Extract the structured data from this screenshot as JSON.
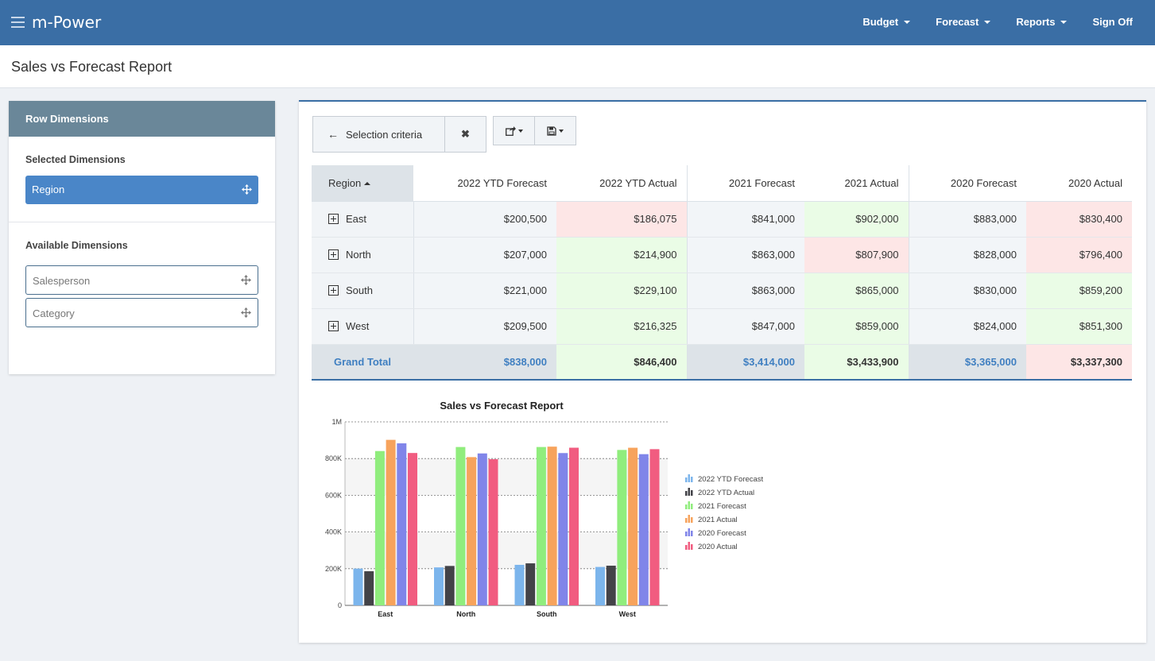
{
  "app": {
    "brand": "m-Power"
  },
  "nav": {
    "items": [
      {
        "label": "Budget",
        "dropdown": true
      },
      {
        "label": "Forecast",
        "dropdown": true
      },
      {
        "label": "Reports",
        "dropdown": true
      },
      {
        "label": "Sign Off",
        "dropdown": false
      }
    ]
  },
  "page": {
    "title": "Sales vs Forecast Report"
  },
  "left_panel": {
    "header": "Row Dimensions",
    "selected_label": "Selected Dimensions",
    "selected": [
      "Region"
    ],
    "available_label": "Available Dimensions",
    "available": [
      "Salesperson",
      "Category"
    ]
  },
  "toolbar": {
    "selection_label": "Selection criteria"
  },
  "table": {
    "region_header": "Region",
    "columns": [
      "2022 YTD Forecast",
      "2022 YTD Actual",
      "2021 Forecast",
      "2021 Actual",
      "2020 Forecast",
      "2020 Actual"
    ],
    "rows": [
      {
        "region": "East",
        "values": [
          "$200,500",
          "$186,075",
          "$841,000",
          "$902,000",
          "$883,000",
          "$830,400"
        ],
        "status": [
          "",
          "red",
          "",
          "green",
          "",
          "red"
        ]
      },
      {
        "region": "North",
        "values": [
          "$207,000",
          "$214,900",
          "$863,000",
          "$807,900",
          "$828,000",
          "$796,400"
        ],
        "status": [
          "",
          "green",
          "",
          "red",
          "",
          "red"
        ]
      },
      {
        "region": "South",
        "values": [
          "$221,000",
          "$229,100",
          "$863,000",
          "$865,000",
          "$830,000",
          "$859,200"
        ],
        "status": [
          "",
          "green",
          "",
          "green",
          "",
          "green"
        ]
      },
      {
        "region": "West",
        "values": [
          "$209,500",
          "$216,325",
          "$847,000",
          "$859,000",
          "$824,000",
          "$851,300"
        ],
        "status": [
          "",
          "green",
          "",
          "green",
          "",
          "green"
        ]
      }
    ],
    "total": {
      "label": "Grand Total",
      "values": [
        "$838,000",
        "$846,400",
        "$3,414,000",
        "$3,433,900",
        "$3,365,000",
        "$3,337,300"
      ],
      "status": [
        "",
        "green",
        "",
        "green",
        "",
        "red"
      ]
    }
  },
  "colors": {
    "accent": "#3a6ea5",
    "red_cell": "#fde6e6",
    "green_cell": "#eafce6"
  },
  "chart_data": {
    "type": "bar",
    "title": "Sales vs Forecast Report",
    "categories": [
      "East",
      "North",
      "South",
      "West"
    ],
    "series": [
      {
        "name": "2022 YTD Forecast",
        "color": "#7cb5ec",
        "values": [
          200500,
          207000,
          221000,
          209500
        ]
      },
      {
        "name": "2022 YTD Actual",
        "color": "#434348",
        "values": [
          186075,
          214900,
          229100,
          216325
        ]
      },
      {
        "name": "2021 Forecast",
        "color": "#90ed7d",
        "values": [
          841000,
          863000,
          863000,
          847000
        ]
      },
      {
        "name": "2021 Actual",
        "color": "#f7a35c",
        "values": [
          902000,
          807900,
          865000,
          859000
        ]
      },
      {
        "name": "2020 Forecast",
        "color": "#8085e9",
        "values": [
          883000,
          828000,
          830000,
          824000
        ]
      },
      {
        "name": "2020 Actual",
        "color": "#f15c80",
        "values": [
          830400,
          796400,
          859200,
          851300
        ]
      }
    ],
    "yticks": [
      "0",
      "200K",
      "400K",
      "600K",
      "800K",
      "1M"
    ],
    "ylim": [
      0,
      1000000
    ],
    "grid": true,
    "legend": "right"
  }
}
